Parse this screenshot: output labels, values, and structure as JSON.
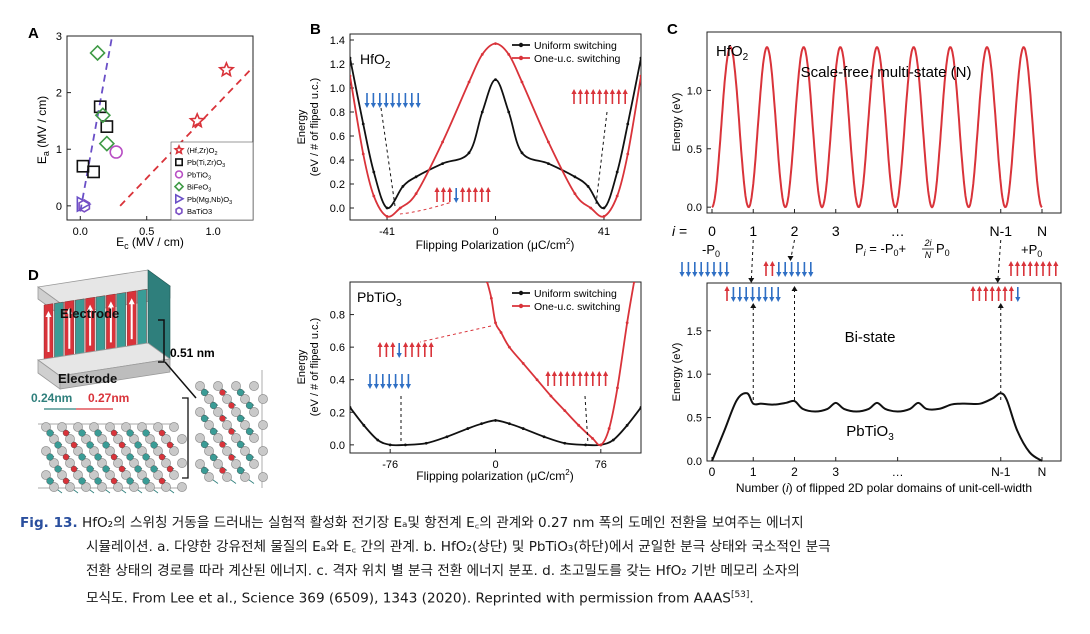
{
  "panels": {
    "A": {
      "letter": "A",
      "ylabel": "E",
      "ylabel_sub": "a",
      "ylabel_unit": " (MV / cm)",
      "xlabel": "E",
      "xlabel_sub": "c",
      "xlabel_unit": " (MV / cm)",
      "xlim": [
        -0.1,
        1.3
      ],
      "ylim": [
        -0.25,
        3.0
      ],
      "xticks": [
        "0.0",
        "0.5",
        "1.0"
      ],
      "xtick_values": [
        0,
        0.5,
        1.0
      ],
      "yticks": [
        "0",
        "1",
        "2",
        "3"
      ],
      "ytick_values": [
        0,
        1,
        2,
        3
      ],
      "legend": [
        {
          "label": "(Hf,Zr)O",
          "sub": "2",
          "marker": "star",
          "color": "#d9333a"
        },
        {
          "label": "Pb(Ti,Zr)O",
          "sub": "3",
          "marker": "square",
          "color": "#111111"
        },
        {
          "label": "PbTiO",
          "sub": "3",
          "marker": "circle",
          "color": "#b84fc4"
        },
        {
          "label": "BiFeO",
          "sub": "3",
          "marker": "diamond",
          "color": "#3e9a45"
        },
        {
          "label": "Pb(Mg,Nb)O",
          "sub": "3",
          "marker": "triangle",
          "color": "#6a4fc7"
        },
        {
          "label": "BaTiO3",
          "sub": "",
          "marker": "hexagon",
          "color": "#7a4fc4"
        }
      ],
      "points": [
        {
          "m": "star",
          "x": 1.1,
          "y": 2.4
        },
        {
          "m": "star",
          "x": 0.88,
          "y": 1.5
        },
        {
          "m": "square",
          "x": 0.15,
          "y": 1.75
        },
        {
          "m": "square",
          "x": 0.2,
          "y": 1.4
        },
        {
          "m": "square",
          "x": 0.02,
          "y": 0.7
        },
        {
          "m": "square",
          "x": 0.1,
          "y": 0.6
        },
        {
          "m": "circle",
          "x": 0.27,
          "y": 0.95
        },
        {
          "m": "diamond",
          "x": 0.13,
          "y": 2.7
        },
        {
          "m": "diamond",
          "x": 0.17,
          "y": 1.6
        },
        {
          "m": "diamond",
          "x": 0.2,
          "y": 1.1
        },
        {
          "m": "triangle",
          "x": 0.02,
          "y": 0.03
        },
        {
          "m": "hexagon",
          "x": 0.03,
          "y": 0.0
        }
      ],
      "fit_lines": [
        {
          "color": "#6a4fc7",
          "x": [
            0.0,
            0.24
          ],
          "y": [
            -0.1,
            3.0
          ]
        },
        {
          "color": "#d9333a",
          "x": [
            0.3,
            1.3
          ],
          "y": [
            0.0,
            2.45
          ]
        }
      ]
    },
    "B_top": {
      "letter": "B",
      "material": "HfO",
      "material_sub": "2",
      "ylabel_line1": "Energy",
      "ylabel_line2": "(eV / # of fliped u.c.)",
      "xlabel": "Flipping Polarization (μC/cm",
      "xlabel_sup": "2",
      "xlabel_end": ")",
      "xlim": [
        -55,
        55
      ],
      "ylim": [
        -0.1,
        1.45
      ],
      "xticks": [
        "-41",
        "0",
        "41"
      ],
      "xtick_values": [
        -41,
        0,
        41
      ],
      "yticks": [
        "0.0",
        "0.2",
        "0.4",
        "0.6",
        "0.8",
        "1.0",
        "1.2",
        "1.4"
      ],
      "ytick_values": [
        0,
        0.2,
        0.4,
        0.6,
        0.8,
        1.0,
        1.2,
        1.4
      ],
      "legend": [
        {
          "label": "Uniform switching",
          "color": "#111111"
        },
        {
          "label": "One-u.c. switching",
          "color": "#d9333a"
        }
      ],
      "series": [
        {
          "name": "Uniform switching",
          "color": "#111111",
          "x": [
            -55,
            -50,
            -46,
            -41,
            -35,
            -30,
            -20,
            -10,
            -5,
            0,
            5,
            10,
            20,
            30,
            35,
            41,
            46,
            50,
            55
          ],
          "y": [
            1.25,
            0.7,
            0.3,
            0.0,
            0.18,
            0.26,
            0.37,
            0.46,
            0.8,
            1.07,
            0.8,
            0.46,
            0.37,
            0.26,
            0.18,
            0.0,
            0.3,
            0.7,
            1.25
          ]
        },
        {
          "name": "One-u.c. switching",
          "color": "#d9333a",
          "x": [
            -55,
            -50,
            -46,
            -41,
            -36,
            -30,
            -20,
            -10,
            -5,
            0,
            5,
            10,
            20,
            30,
            36,
            41,
            46,
            50,
            55
          ],
          "y": [
            1.1,
            0.45,
            0.1,
            -0.07,
            0.0,
            0.12,
            0.55,
            1.05,
            1.28,
            1.37,
            1.28,
            1.05,
            0.55,
            0.12,
            0.0,
            -0.07,
            0.1,
            0.45,
            1.1
          ]
        }
      ]
    },
    "B_bottom": {
      "material": "PbTiO",
      "material_sub": "3",
      "ylabel_line1": "Energy",
      "ylabel_line2": "(eV / # of fliped u.c.)",
      "xlabel": "Flipping polarization (μC/cm",
      "xlabel_sup": "2",
      "xlabel_end": ")",
      "xlim": [
        -105,
        105
      ],
      "ylim": [
        -0.05,
        1.0
      ],
      "xticks": [
        "-76",
        "0",
        "76"
      ],
      "xtick_values": [
        -76,
        0,
        76
      ],
      "yticks": [
        "0.0",
        "0.2",
        "0.4",
        "0.6",
        "0.8"
      ],
      "ytick_values": [
        0,
        0.2,
        0.4,
        0.6,
        0.8
      ],
      "legend": [
        {
          "label": "Uniform switching",
          "color": "#111111"
        },
        {
          "label": "One-u.c. switching",
          "color": "#d9333a"
        }
      ],
      "series": [
        {
          "name": "Uniform switching",
          "color": "#111111",
          "x": [
            -105,
            -95,
            -85,
            -76,
            -65,
            -50,
            -35,
            -20,
            -10,
            0,
            10,
            20,
            35,
            50,
            65,
            76,
            85,
            95,
            105
          ],
          "y": [
            0.23,
            0.12,
            0.03,
            0.0,
            0.0,
            0.01,
            0.05,
            0.1,
            0.13,
            0.15,
            0.13,
            0.1,
            0.05,
            0.01,
            0.0,
            0.0,
            0.03,
            0.12,
            0.23
          ]
        },
        {
          "name": "One-u.c. switching",
          "color": "#d9333a",
          "x": [
            -6,
            -3,
            0,
            4,
            10,
            20,
            30,
            40,
            50,
            60,
            70,
            76,
            82,
            88,
            95,
            100
          ],
          "y": [
            1.0,
            0.9,
            0.75,
            0.69,
            0.6,
            0.5,
            0.4,
            0.3,
            0.21,
            0.12,
            0.04,
            0.0,
            0.1,
            0.35,
            0.75,
            1.0
          ]
        }
      ]
    },
    "C_top": {
      "letter": "C",
      "material": "HfO",
      "material_sub": "2",
      "title": "Scale-free, multi-state (N)",
      "ylabel": "Energy (eV)",
      "yticks": [
        "0.0",
        "0.5",
        "1.0"
      ],
      "ytick_values": [
        0,
        0.5,
        1.0
      ],
      "ylim": [
        -0.05,
        1.5
      ],
      "peaks": 9,
      "peak_height": 1.37,
      "series_color": "#d9333a"
    },
    "C_mid": {
      "i_label": "i",
      "i_eq": " = ",
      "i_ticks": [
        "0",
        "1",
        "2",
        "3",
        "…",
        "N-1",
        "N"
      ],
      "p_left": "-P",
      "p_left_sub": "0",
      "p_right": "+P",
      "p_right_sub": "0",
      "formula_lhs": "P",
      "formula_lhs_sub": "i",
      "formula_rhs1": " = -P",
      "formula_rhs1_sub": "0",
      "formula_plus": "+",
      "formula_num": "2i",
      "formula_den": "N",
      "formula_end": " P",
      "formula_end_sub": "0"
    },
    "C_bottom": {
      "material": "PbTiO",
      "material_sub": "3",
      "title": "Bi-state",
      "ylabel": "Energy (eV)",
      "xlabel_pre": "Number (",
      "xlabel_i": "i",
      "xlabel_post": ") of flipped 2D polar domains of unit-cell-width",
      "yticks": [
        "0.0",
        "0.5",
        "1.0",
        "1.5"
      ],
      "ytick_values": [
        0,
        0.5,
        1.0,
        1.5
      ],
      "ylim": [
        0,
        2.05
      ],
      "xticks": [
        "0",
        "1",
        "2",
        "3",
        "…",
        "N-1",
        "N"
      ],
      "series": {
        "x": [
          0,
          0.3,
          0.6,
          0.85,
          1.0,
          1.2,
          1.5,
          1.8,
          2.0,
          2.2,
          2.5,
          2.8,
          3.0,
          3.2,
          3.5,
          3.8,
          4.0,
          4.2,
          4.5,
          4.8,
          5.0,
          5.2,
          5.5,
          5.8,
          6.0,
          6.2,
          6.5,
          6.8,
          7.0,
          7.15,
          7.4,
          7.7,
          8.0
        ],
        "y": [
          0.0,
          0.35,
          0.7,
          0.78,
          0.66,
          0.66,
          0.65,
          0.67,
          0.69,
          0.6,
          0.57,
          0.6,
          0.67,
          0.6,
          0.57,
          0.6,
          0.67,
          0.6,
          0.57,
          0.6,
          0.67,
          0.6,
          0.6,
          0.65,
          0.66,
          0.66,
          0.66,
          0.72,
          0.78,
          0.7,
          0.35,
          0.1,
          0.0
        ]
      },
      "series_color": "#111111"
    },
    "D": {
      "letter": "D",
      "electrode_top": "Electrode",
      "electrode_bottom": "Electrode",
      "thickness": "0.51 nm",
      "width_left": "0.24nm",
      "width_right": "0.27nm",
      "width_left_color": "#2f7f7c",
      "width_right_color": "#d9333a"
    }
  },
  "caption": {
    "label": "Fig. 13.",
    "line1": " HfO₂의 스위칭 거동을 드러내는 실험적 활성화 전기장 Eₐ및 항전계 E꜀의 관계와 0.27 nm 폭의 도메인 전환을 보여주는 에너지",
    "line2": "시뮬레이션. a. 다양한 강유전체 물질의 Eₐ와 E꜀ 간의 관계. b. HfO₂(상단) 및 PbTiO₃(하단)에서 균일한 분극 상태와 국소적인 분극",
    "line3": "전환 상태의 경로를 따라 계산된 에너지. c. 격자 위치 별 분극 전환 에너지 분포. d. 초고밀도를 갖는 HfO₂ 기반 메모리 소자의",
    "line4": "모식도. From Lee et al., Science 369 (6509), 1343 (2020). Reprinted with permission from AAAS",
    "ref": "[53]",
    "end": "."
  },
  "colors": {
    "red": "#d9333a",
    "blue": "#2f6fc4",
    "black": "#111111"
  }
}
